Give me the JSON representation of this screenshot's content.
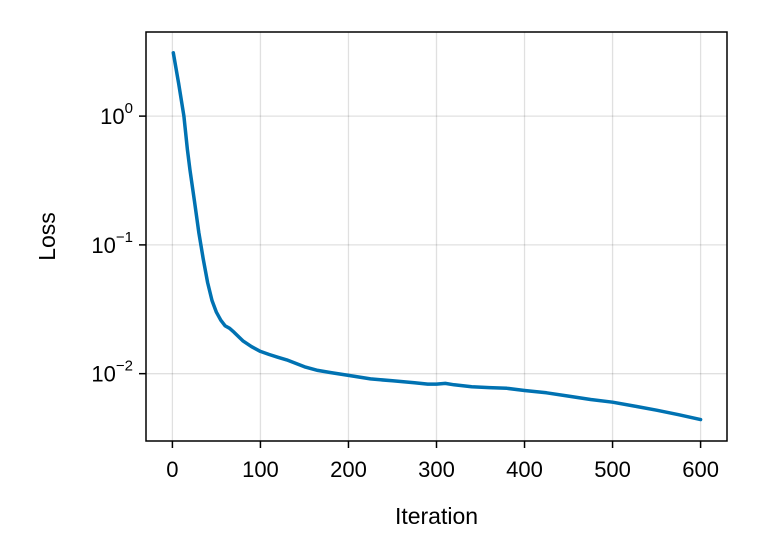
{
  "chart_data": {
    "type": "line",
    "title": "",
    "xlabel": "Iteration",
    "ylabel": "Loss",
    "xscale": "linear",
    "yscale": "log",
    "xlim": [
      -30,
      630
    ],
    "ylim": [
      0.003,
      4.5
    ],
    "grid": true,
    "legend": "none",
    "xticks": [
      0,
      100,
      200,
      300,
      400,
      500,
      600
    ],
    "xtick_labels": [
      "0",
      "100",
      "200",
      "300",
      "400",
      "500",
      "600"
    ],
    "yticks": [
      {
        "value": 0.01,
        "base": "10",
        "exp": "−2"
      },
      {
        "value": 0.1,
        "base": "10",
        "exp": "−1"
      },
      {
        "value": 1,
        "base": "10",
        "exp": "0"
      }
    ],
    "series": [
      {
        "color": "#0072b2",
        "x": [
          1,
          7,
          13,
          17,
          20,
          25,
          30,
          35,
          40,
          45,
          50,
          55,
          60,
          65,
          70,
          80,
          90,
          100,
          110,
          120,
          130,
          150,
          165,
          180,
          200,
          225,
          250,
          275,
          290,
          300,
          310,
          320,
          340,
          360,
          380,
          400,
          425,
          450,
          475,
          500,
          525,
          550,
          575,
          600
        ],
        "y": [
          3.1,
          1.8,
          1.0,
          0.55,
          0.38,
          0.22,
          0.125,
          0.078,
          0.051,
          0.037,
          0.03,
          0.026,
          0.0235,
          0.0225,
          0.021,
          0.018,
          0.0162,
          0.0149,
          0.0141,
          0.0134,
          0.0128,
          0.0113,
          0.0106,
          0.0102,
          0.0097,
          0.0091,
          0.0088,
          0.0085,
          0.0083,
          0.0083,
          0.0084,
          0.0082,
          0.0079,
          0.0078,
          0.0077,
          0.0074,
          0.0071,
          0.0067,
          0.0063,
          0.006,
          0.0056,
          0.0052,
          0.0048,
          0.0044
        ]
      }
    ]
  }
}
